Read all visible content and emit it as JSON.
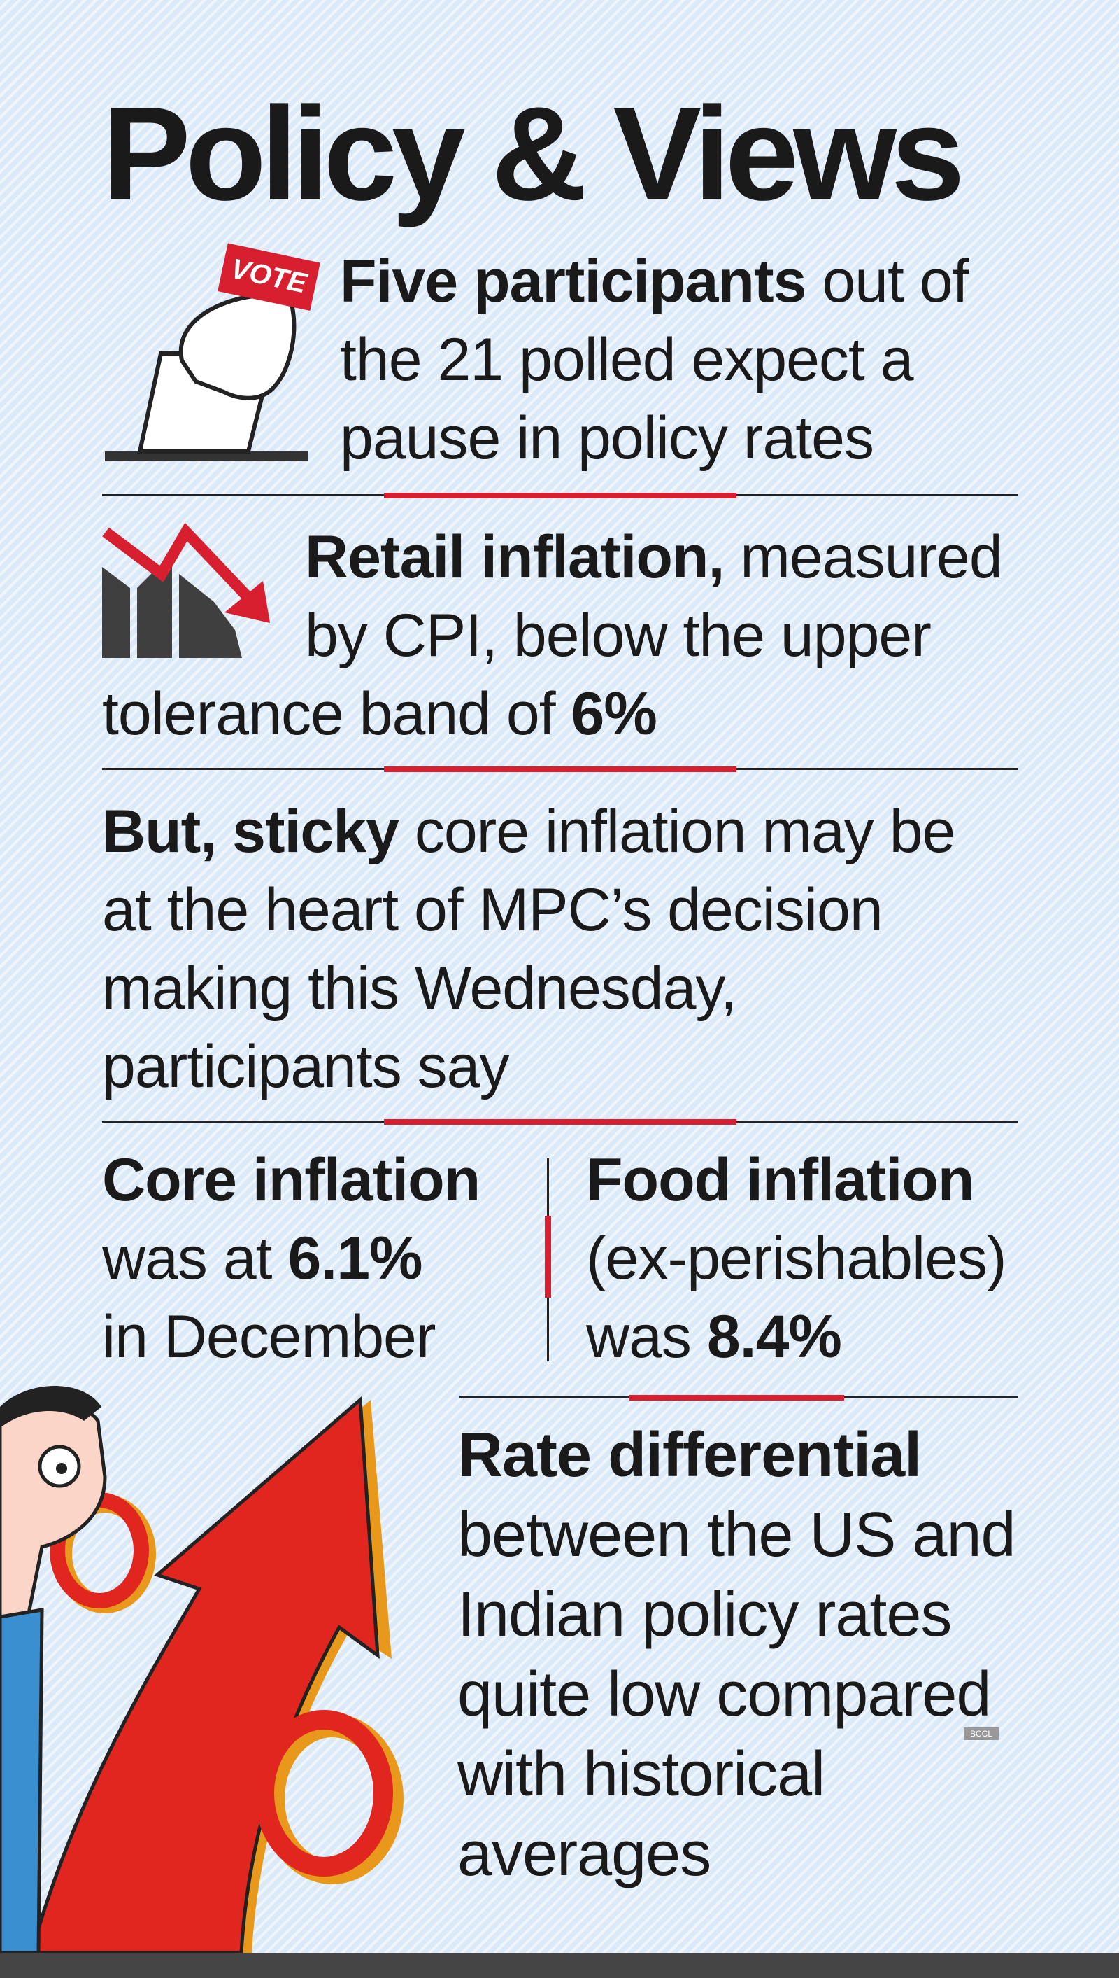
{
  "title": "Policy & Views",
  "vote_badge": "VOTE",
  "sections": [
    {
      "lead": "Five participants",
      "text": "out of the 21 polled expect a pause in policy rates"
    },
    {
      "lead": "Retail inflation,",
      "text": "measured by CPI, below the upper tolerance band of",
      "emphasis": "6%"
    },
    {
      "lead": "But, sticky",
      "text": "core inflation may be at the heart of MPC’s decision making this Wednesday, participants say"
    },
    {
      "lead": "Core inflation",
      "text": "was at",
      "emphasis": "6.1%",
      "tail": "in December"
    },
    {
      "lead": "Food inflation",
      "text": "(ex-perishables) was",
      "emphasis": "8.4%"
    },
    {
      "lead": "Rate differential",
      "text": "between the US and Indian policy rates quite low compared with historical averages"
    }
  ],
  "credit": "BCCL"
}
